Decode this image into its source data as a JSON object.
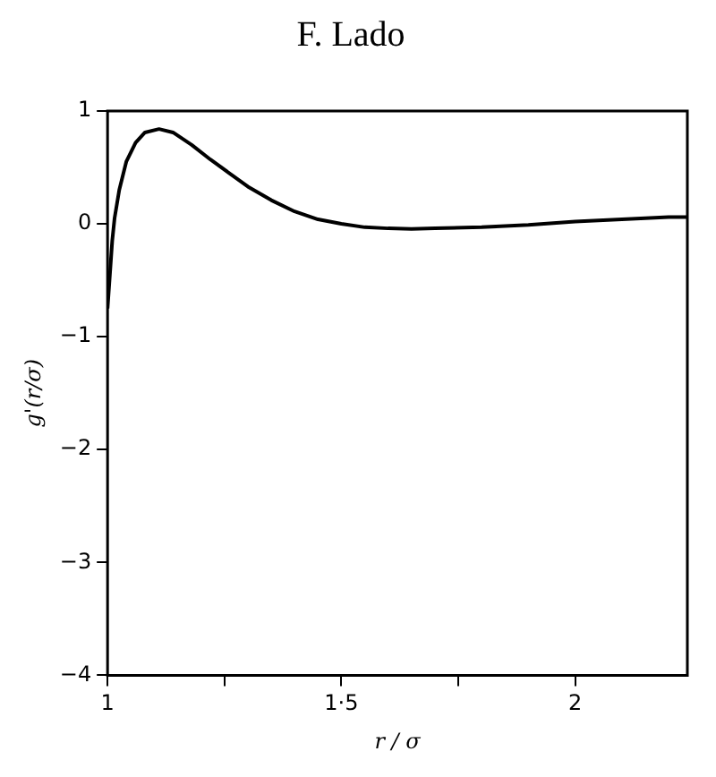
{
  "chart_data": {
    "type": "line",
    "title": "F. Lado",
    "xlabel": "r / σ",
    "ylabel": "g'(r/σ)",
    "x": [
      1,
      1.005,
      1.01,
      1.015,
      1.025,
      1.04,
      1.06,
      1.08,
      1.11,
      1.14,
      1.18,
      1.22,
      1.26,
      1.3,
      1.35,
      1.4,
      1.45,
      1.5,
      1.55,
      1.6,
      1.65,
      1.7,
      1.8,
      1.9,
      2.0,
      2.1,
      2.2,
      2.24
    ],
    "series": [
      {
        "color": "#000000",
        "values": [
          -0.75,
          -0.45,
          -0.15,
          0.05,
          0.3,
          0.55,
          0.72,
          0.81,
          0.84,
          0.81,
          0.7,
          0.57,
          0.45,
          0.33,
          0.21,
          0.11,
          0.04,
          0.0,
          -0.03,
          -0.04,
          -0.045,
          -0.04,
          -0.03,
          -0.01,
          0.02,
          0.04,
          0.06,
          0.06
        ]
      }
    ],
    "xlim": [
      1,
      2.24
    ],
    "ylim": [
      -4,
      1
    ],
    "xticks": [
      1,
      {
        "value": 1.25,
        "label": null
      },
      {
        "value": 1.5,
        "label": "1·5"
      },
      {
        "value": 1.75,
        "label": null
      },
      2
    ],
    "yticks": [
      -4,
      -3,
      -2,
      -1,
      0,
      1
    ],
    "grid": false,
    "legend": false,
    "marker": "none",
    "line_style": "solid"
  }
}
